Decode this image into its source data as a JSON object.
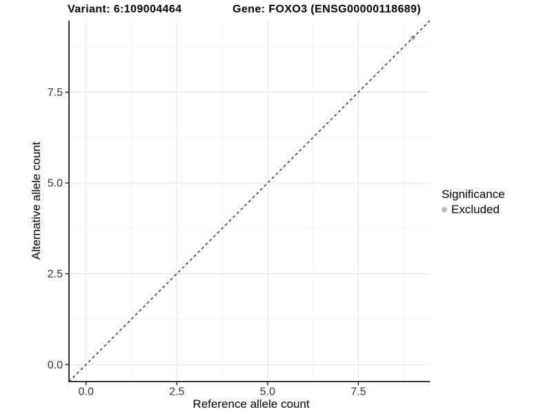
{
  "chart_data": {
    "type": "scatter",
    "titles": {
      "variant": "Variant: 6:109004464",
      "gene": "Gene: FOXO3 (ENSG00000118689)"
    },
    "xlabel": "Reference allele count",
    "ylabel": "Alternative allele count",
    "xlim": [
      -0.47,
      9.47
    ],
    "ylim": [
      -0.47,
      9.47
    ],
    "x_ticks": [
      0.0,
      2.5,
      5.0,
      7.5
    ],
    "x_tick_labels": [
      "0.0",
      "2.5",
      "5.0",
      "7.5"
    ],
    "y_ticks": [
      0.0,
      2.5,
      5.0,
      7.5
    ],
    "y_tick_labels": [
      "0.0",
      "2.5",
      "5.0",
      "7.5"
    ],
    "x_minor_ticks": [
      1.25,
      3.75,
      6.25,
      8.75
    ],
    "y_minor_ticks": [
      1.25,
      3.75,
      6.25,
      8.75
    ],
    "grid": true,
    "reference_line": {
      "type": "abline",
      "slope": 1,
      "intercept": 0,
      "style": "dashed",
      "color": "#000000"
    },
    "series": [
      {
        "name": "Excluded",
        "color": "#bdbdbd",
        "points": [
          {
            "x": 9,
            "y": 9
          }
        ]
      }
    ],
    "legend": {
      "title": "Significance",
      "position": "right",
      "entries": [
        {
          "label": "Excluded",
          "color": "#bdbdbd"
        }
      ]
    },
    "style": {
      "major_grid_color": "#e4e4e4",
      "minor_grid_color": "#f1f1f1",
      "axis_line_color": "#333333",
      "tick_label_color": "#333333",
      "background": "#ffffff"
    }
  }
}
